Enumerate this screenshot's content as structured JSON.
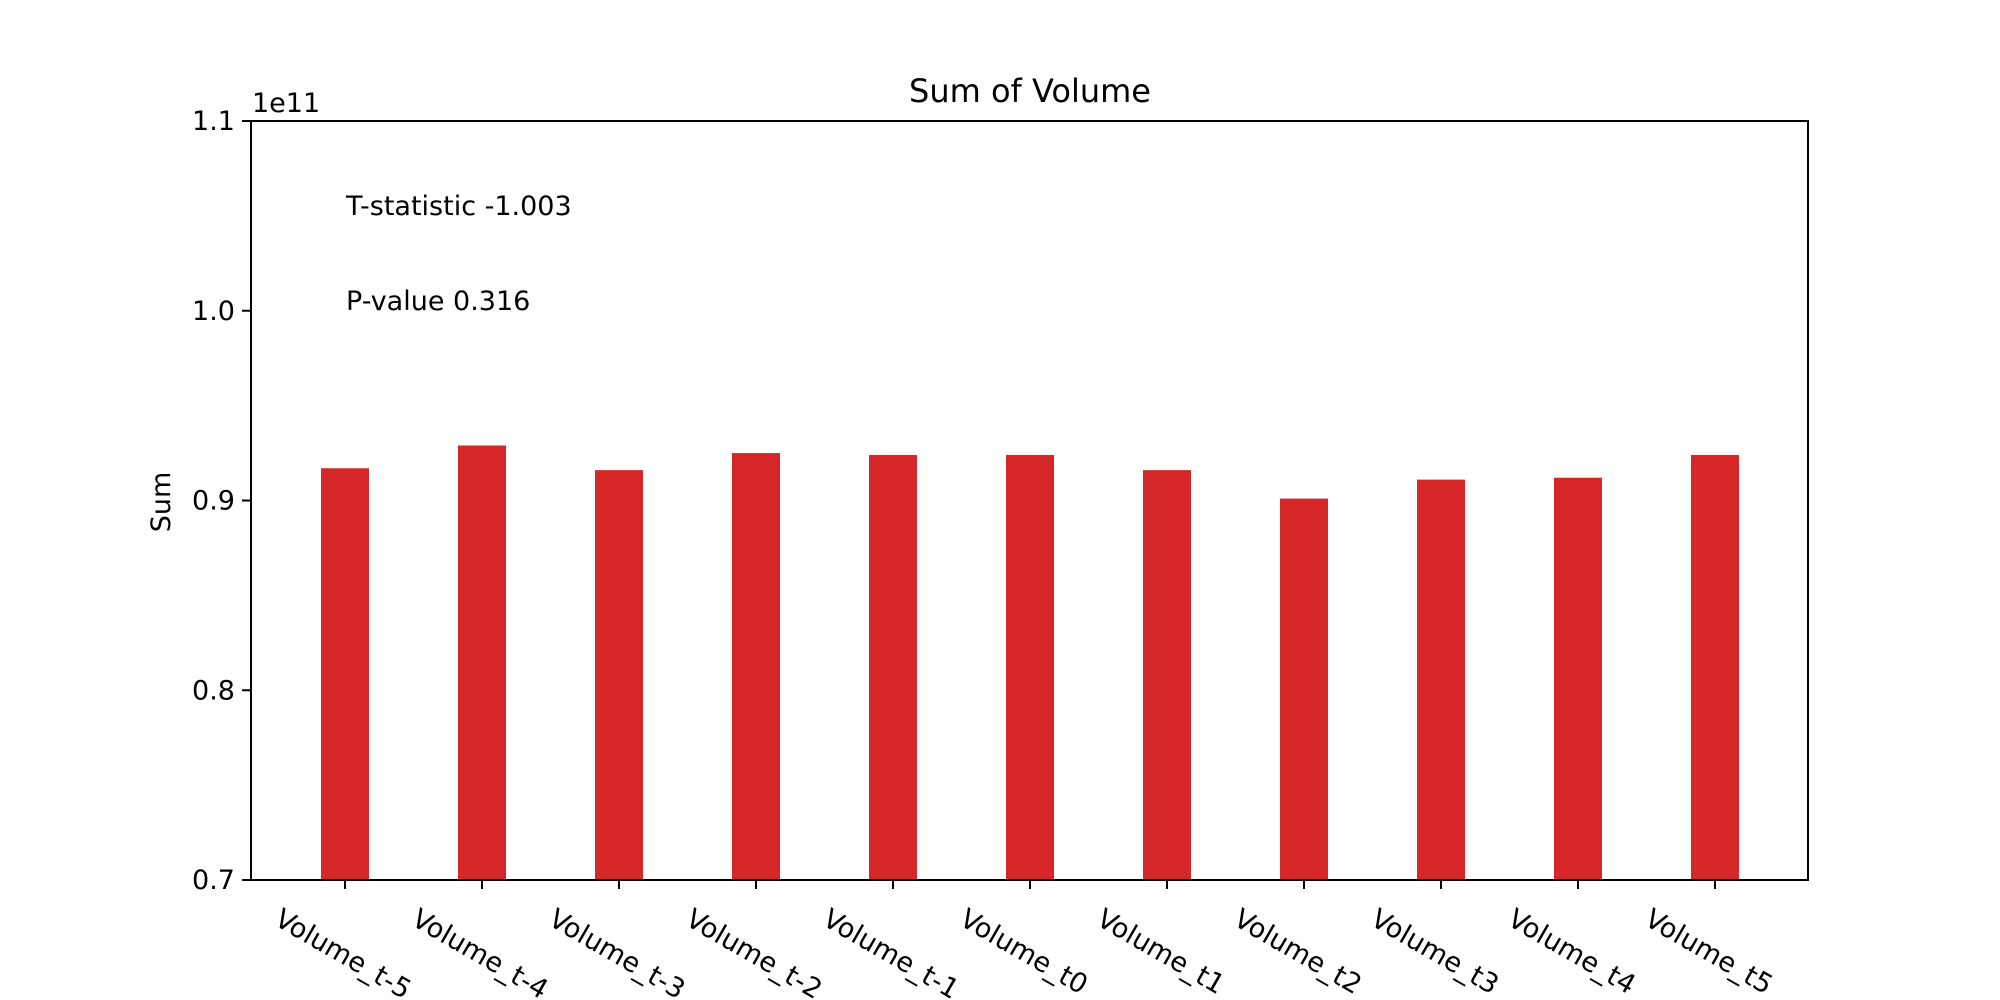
{
  "chart_data": {
    "type": "bar",
    "title": "Sum of Volume",
    "xlabel": "",
    "ylabel": "Sum",
    "offset_label": "1e11",
    "categories": [
      "Volume_t-5",
      "Volume_t-4",
      "Volume_t-3",
      "Volume_t-2",
      "Volume_t-1",
      "Volume_t0",
      "Volume_t1",
      "Volume_t2",
      "Volume_t3",
      "Volume_t4",
      "Volume_t5"
    ],
    "values": [
      0.917,
      0.929,
      0.916,
      0.925,
      0.924,
      0.924,
      0.916,
      0.901,
      0.911,
      0.912,
      0.924
    ],
    "ylim": [
      0.7,
      1.1
    ],
    "yticks": [
      "0.7",
      "0.8",
      "0.9",
      "1.0",
      "1.1"
    ],
    "bar_color": "#d62728",
    "grid": false,
    "annotations": [
      "T-statistic -1.003",
      "P-value 0.316"
    ]
  }
}
